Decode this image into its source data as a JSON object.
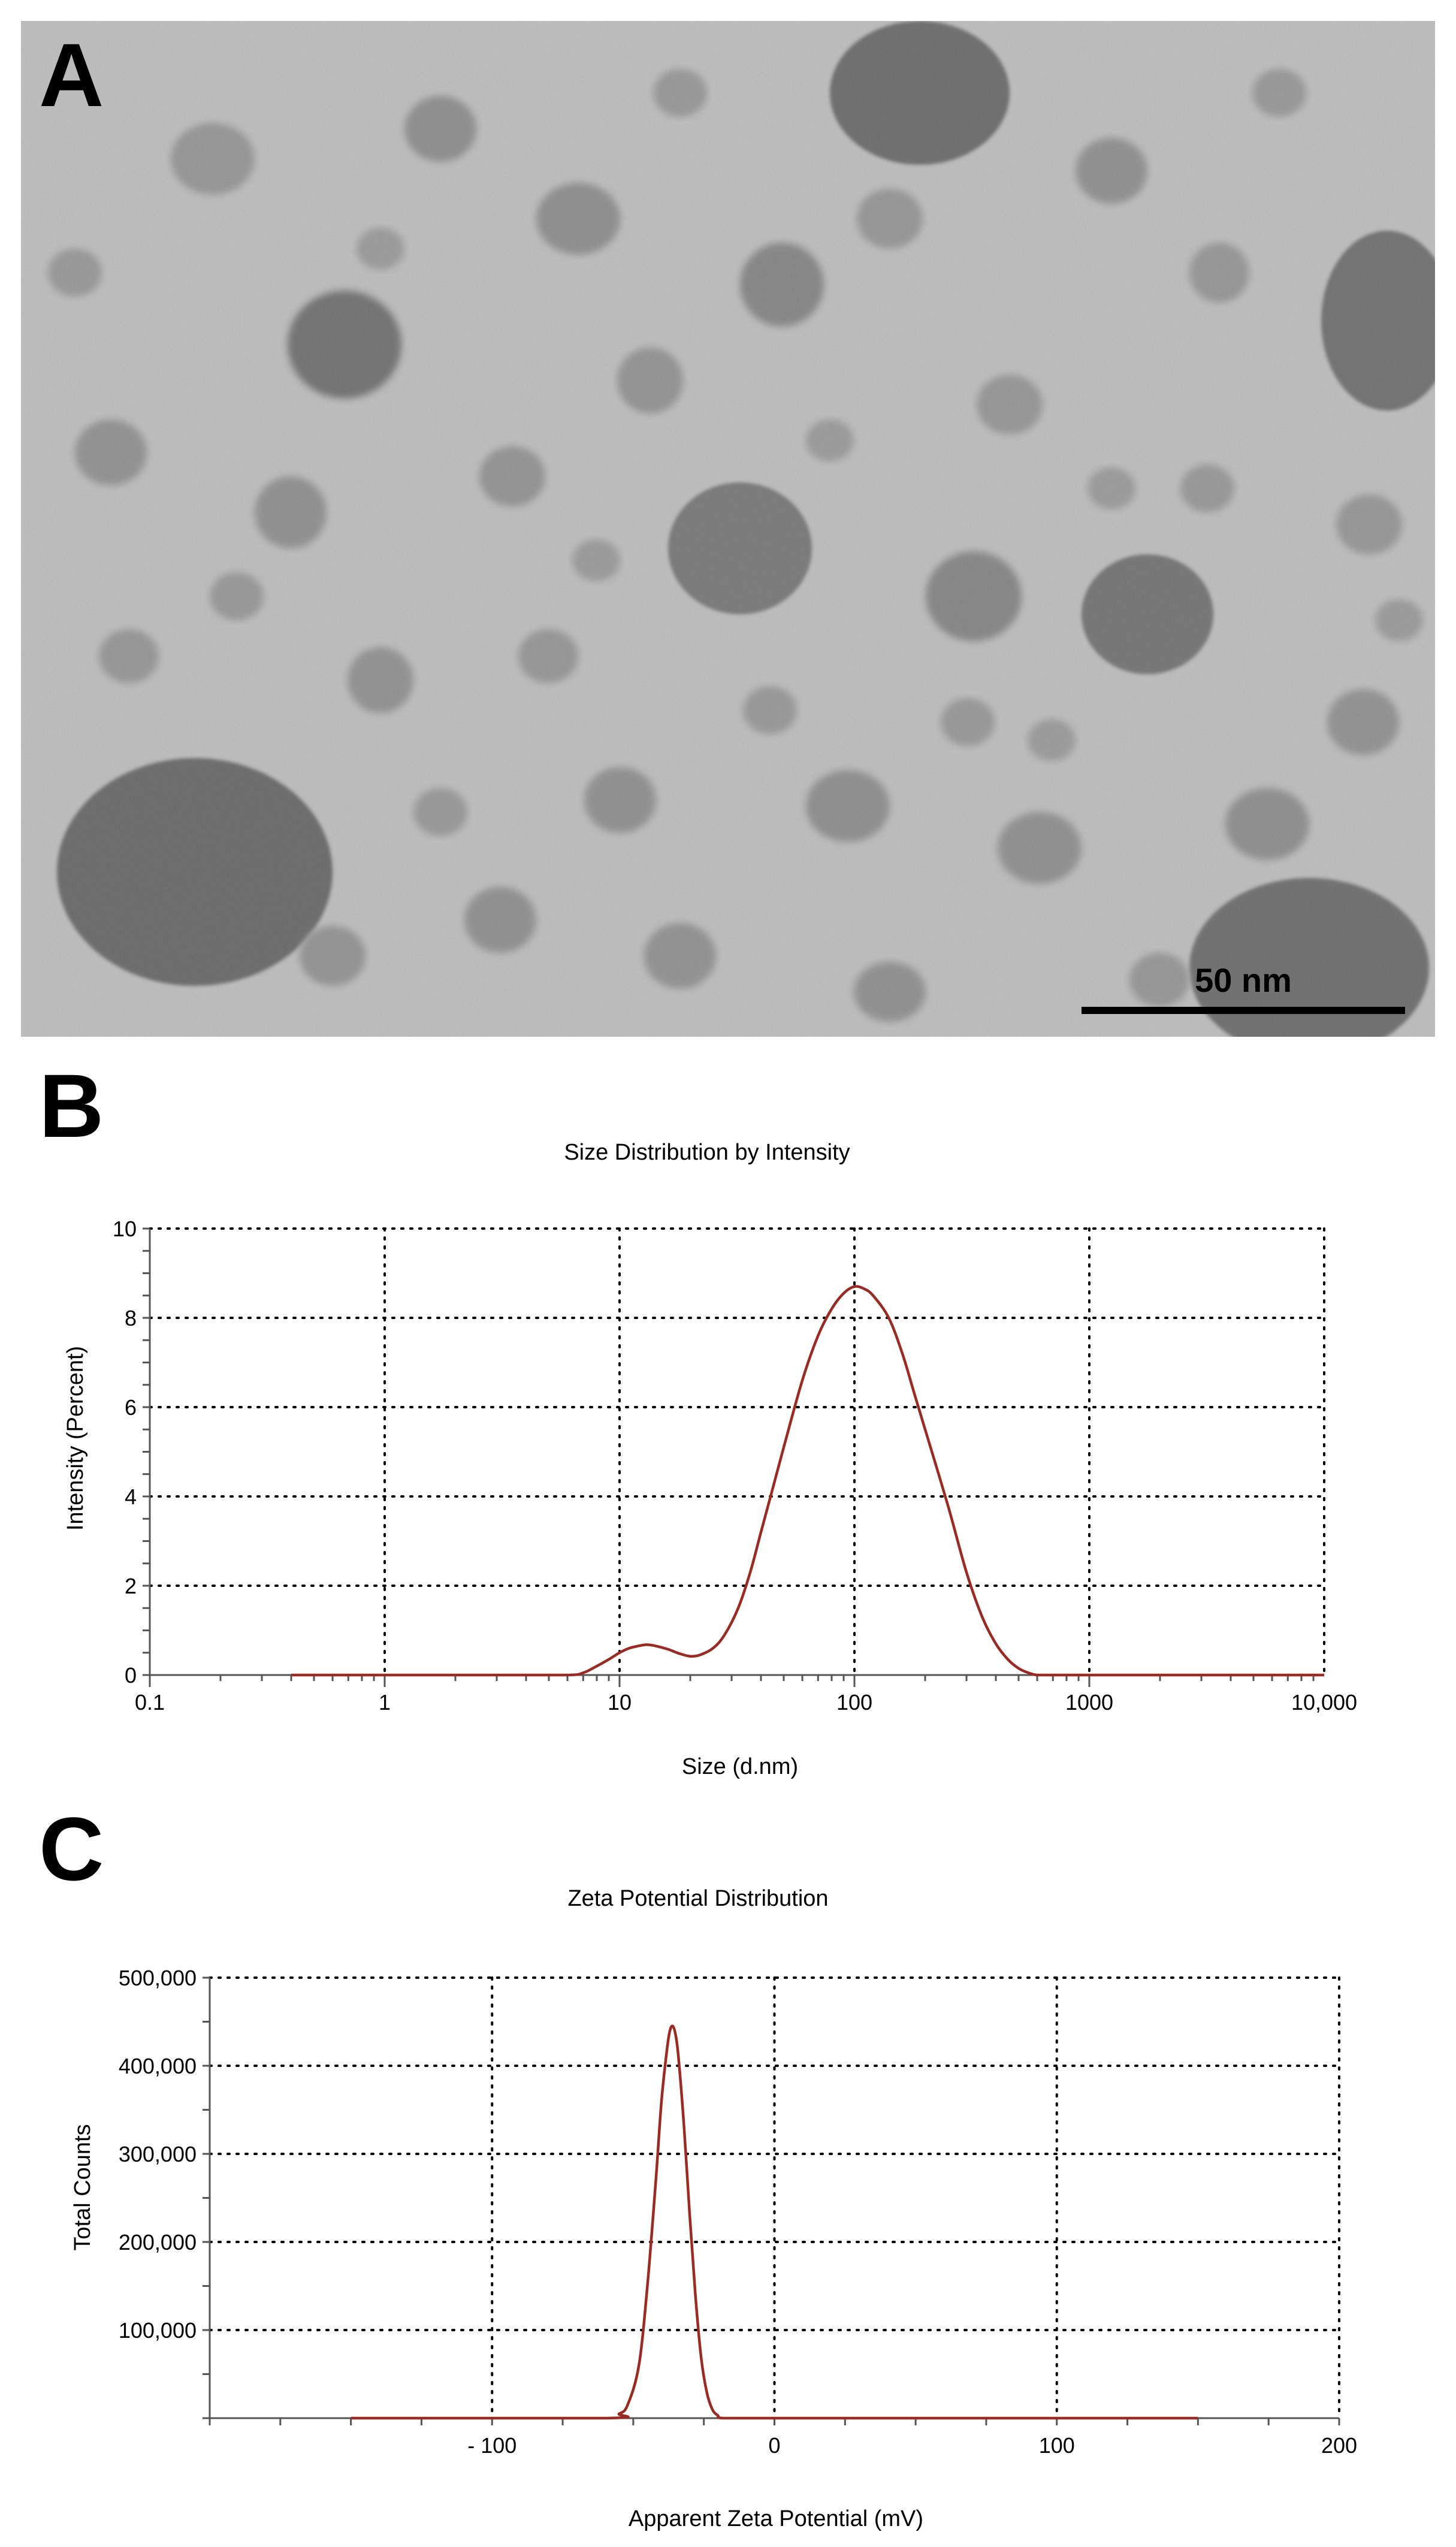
{
  "panels": {
    "a": {
      "letter": "A",
      "scale_bar_label": "50 nm"
    },
    "b": {
      "letter": "B"
    },
    "c": {
      "letter": "C"
    }
  },
  "chart_data": [
    {
      "type": "line",
      "title": "Size Distribution by Intensity",
      "xlabel": "Size (d.nm)",
      "ylabel": "Intensity (Percent)",
      "xscale": "log",
      "xlim": [
        0.1,
        10000
      ],
      "ylim": [
        0,
        10
      ],
      "xticks": [
        0.1,
        1,
        10,
        100,
        1000,
        10000
      ],
      "xtick_labels": [
        "0.1",
        "1",
        "10",
        "100",
        "1000",
        "10,000"
      ],
      "yticks": [
        0,
        2,
        4,
        6,
        8,
        10
      ],
      "ytick_labels": [
        "0",
        "2",
        "4",
        "6",
        "8",
        "10"
      ],
      "grid": true,
      "color": "#9b2a22",
      "series": [
        {
          "x": [
            0.4,
            1,
            3,
            6,
            7,
            8,
            9,
            10,
            11,
            12,
            13,
            14,
            16,
            18,
            20,
            22,
            25,
            28,
            32,
            36,
            40,
            45,
            50,
            60,
            70,
            80,
            90,
            100,
            110,
            120,
            140,
            160,
            180,
            200,
            250,
            300,
            350,
            400,
            450,
            500,
            550,
            600,
            700,
            1000,
            10000
          ],
          "y": [
            0,
            0,
            0,
            0,
            0.05,
            0.2,
            0.35,
            0.5,
            0.6,
            0.65,
            0.68,
            0.66,
            0.58,
            0.48,
            0.42,
            0.45,
            0.6,
            0.9,
            1.5,
            2.3,
            3.2,
            4.2,
            5.1,
            6.6,
            7.6,
            8.2,
            8.55,
            8.7,
            8.65,
            8.5,
            8.0,
            7.2,
            6.3,
            5.5,
            3.8,
            2.3,
            1.3,
            0.7,
            0.35,
            0.15,
            0.05,
            0,
            0,
            0,
            0
          ]
        }
      ]
    },
    {
      "type": "line",
      "title": "Zeta Potential Distribution",
      "xlabel": "Apparent Zeta Potential (mV)",
      "ylabel": "Total Counts",
      "xlim": [
        -200,
        200
      ],
      "ylim": [
        0,
        500000
      ],
      "xticks": [
        -100,
        0,
        100,
        200
      ],
      "xtick_labels": [
        "- 100",
        "0",
        "100",
        "200"
      ],
      "yticks": [
        100000,
        200000,
        300000,
        400000,
        500000
      ],
      "ytick_labels": [
        "100,000",
        "200,000",
        "300,000",
        "400,000",
        "500,000"
      ],
      "grid": true,
      "color": "#9b2a22",
      "series": [
        {
          "x": [
            -150,
            -60,
            -55,
            -52,
            -48,
            -45,
            -42,
            -40,
            -38,
            -37,
            -36,
            -35,
            -34,
            -32,
            -30,
            -28,
            -26,
            -24,
            -22,
            -20,
            -18,
            0,
            150
          ],
          "y": [
            0,
            0,
            5000,
            15000,
            60000,
            150000,
            270000,
            360000,
            420000,
            440000,
            445000,
            435000,
            410000,
            330000,
            230000,
            140000,
            70000,
            30000,
            10000,
            3000,
            0,
            0,
            0
          ]
        }
      ]
    }
  ]
}
